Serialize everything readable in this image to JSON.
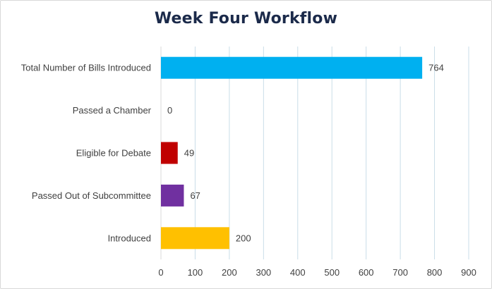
{
  "chart_data": {
    "type": "bar",
    "orientation": "horizontal",
    "title": "Week Four Workflow",
    "xlabel": "",
    "ylabel": "",
    "xlim": [
      0,
      900
    ],
    "ticks": [
      0,
      100,
      200,
      300,
      400,
      500,
      600,
      700,
      800,
      900
    ],
    "grid": "vertical",
    "legend": "none",
    "categories": [
      "Total Number of Bills Introduced",
      "Passed a Chamber",
      "Eligible for Debate",
      "Passed Out of Subcommittee",
      "Introduced"
    ],
    "values": [
      764,
      0,
      49,
      67,
      200
    ],
    "colors": [
      "#00b0f0",
      "#00b0f0",
      "#c00000",
      "#7030a0",
      "#ffc000"
    ]
  },
  "colors": {
    "grid": "#c9dde8",
    "axis": "#d9d9d9",
    "title": "#1b2a4a"
  }
}
